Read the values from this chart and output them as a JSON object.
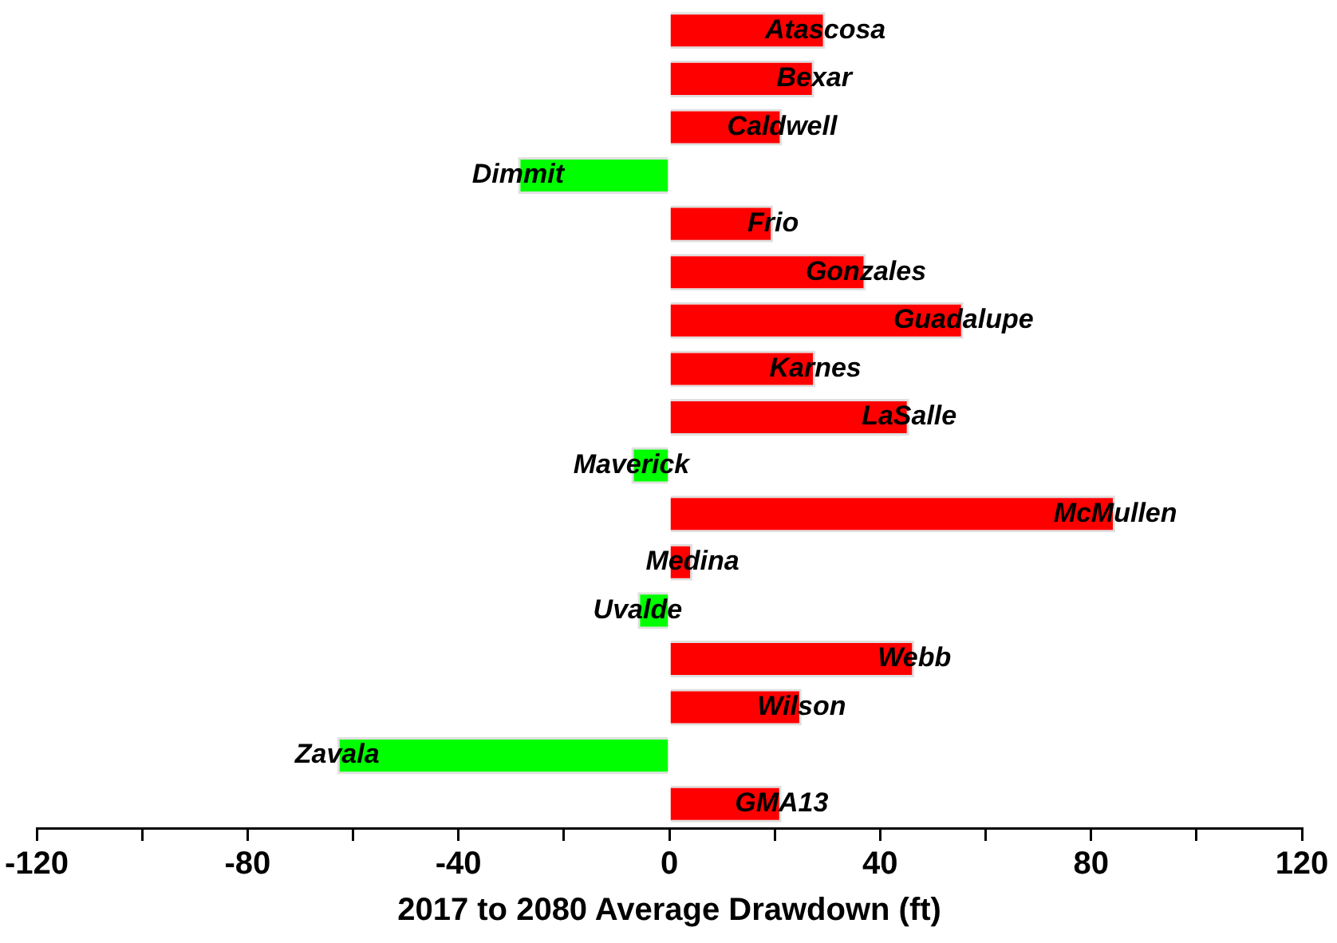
{
  "chart_data": {
    "type": "bar",
    "orientation": "horizontal",
    "xlabel": "2017 to 2080 Average Drawdown (ft)",
    "categories": [
      "Atascosa",
      "Bexar",
      "Caldwell",
      "Dimmit",
      "Frio",
      "Gonzales",
      "Guadalupe",
      "Karnes",
      "LaSalle",
      "Maverick",
      "McMullen",
      "Medina",
      "Uvalde",
      "Webb",
      "Wilson",
      "Zavala",
      "GMA13"
    ],
    "values": [
      29.6,
      27.5,
      21.4,
      -28.7,
      19.7,
      37.3,
      55.8,
      27.7,
      45.5,
      -7.2,
      84.6,
      4.4,
      -6.0,
      46.5,
      25.1,
      -63.0,
      21.3
    ],
    "colors": [
      "#ff0000",
      "#ff0000",
      "#ff0000",
      "#00ff00",
      "#ff0000",
      "#ff0000",
      "#ff0000",
      "#ff0000",
      "#ff0000",
      "#00ff00",
      "#ff0000",
      "#ff0000",
      "#00ff00",
      "#ff0000",
      "#ff0000",
      "#00ff00",
      "#ff0000"
    ],
    "xlim": [
      -120,
      120
    ],
    "xticks": [
      -120,
      {
        "value": -100,
        "label": null
      },
      -80,
      {
        "value": -60,
        "label": null
      },
      -40,
      {
        "value": -20,
        "label": null
      },
      0,
      {
        "value": 20,
        "label": null
      },
      40,
      {
        "value": 60,
        "label": null
      },
      80,
      {
        "value": 100,
        "label": null
      },
      120
    ],
    "grid": false,
    "legend": false
  }
}
